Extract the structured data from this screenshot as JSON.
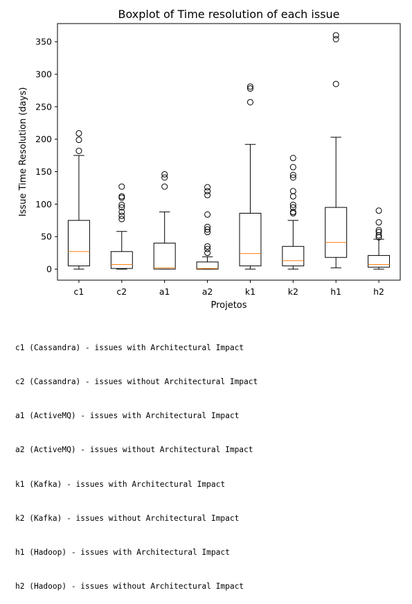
{
  "chart_data": {
    "type": "boxplot",
    "title": "Boxplot of Time resolution of each issue",
    "xlabel": "Projetos",
    "ylabel": "Issue Time Resolution (days)",
    "ylim": [
      -17,
      378
    ],
    "yticks": [
      0,
      50,
      100,
      150,
      200,
      250,
      300,
      350
    ],
    "categories": [
      "c1",
      "c2",
      "a1",
      "a2",
      "k1",
      "k2",
      "h1",
      "h2"
    ],
    "boxes": [
      {
        "label": "c1",
        "whisker_low": 0,
        "q1": 5,
        "median": 27,
        "q3": 75,
        "whisker_high": 175,
        "outliers": [
          182,
          199,
          209
        ]
      },
      {
        "label": "c2",
        "whisker_low": 0,
        "q1": 1,
        "median": 7,
        "q3": 27,
        "whisker_high": 58,
        "outliers": [
          77,
          82,
          88,
          95,
          99,
          110,
          112,
          127
        ]
      },
      {
        "label": "a1",
        "whisker_low": 0,
        "q1": 0,
        "median": 2,
        "q3": 40,
        "whisker_high": 88,
        "outliers": [
          127,
          141,
          146
        ]
      },
      {
        "label": "a2",
        "whisker_low": 0,
        "q1": 0,
        "median": 1,
        "q3": 11,
        "whisker_high": 19,
        "outliers": [
          25,
          31,
          35,
          57,
          61,
          65,
          84,
          114,
          120,
          126
        ]
      },
      {
        "label": "k1",
        "whisker_low": 0,
        "q1": 5,
        "median": 24,
        "q3": 86,
        "whisker_high": 192,
        "outliers": [
          257,
          278,
          281
        ]
      },
      {
        "label": "k2",
        "whisker_low": 0,
        "q1": 5,
        "median": 13,
        "q3": 35,
        "whisker_high": 75,
        "outliers": [
          86,
          88,
          95,
          99,
          112,
          120,
          141,
          145,
          157,
          171
        ]
      },
      {
        "label": "h1",
        "whisker_low": 2,
        "q1": 18,
        "median": 41,
        "q3": 95,
        "whisker_high": 203,
        "outliers": [
          285,
          354,
          360
        ]
      },
      {
        "label": "h2",
        "whisker_low": 0,
        "q1": 3,
        "median": 7,
        "q3": 21,
        "whisker_high": 46,
        "outliers": [
          49,
          52,
          57,
          60,
          72,
          90
        ]
      }
    ],
    "colors": {
      "median": "#ff7f0e",
      "box": "#000000",
      "outlier": "#000000"
    },
    "grid": false
  },
  "notes": [
    "c1 (Cassandra) - issues with Architectural Impact",
    "c2 (Cassandra) - issues without Architectural Impact",
    "a1 (ActiveMQ) - issues with Architectural Impact",
    "a2 (ActiveMQ) - issues without Architectural Impact",
    "k1 (Kafka) - issues with Architectural Impact",
    "k2 (Kafka) - issues without Architectural Impact",
    "h1 (Hadoop) - issues with Architectural Impact",
    "h2 (Hadoop) - issues without Architectural Impact"
  ]
}
